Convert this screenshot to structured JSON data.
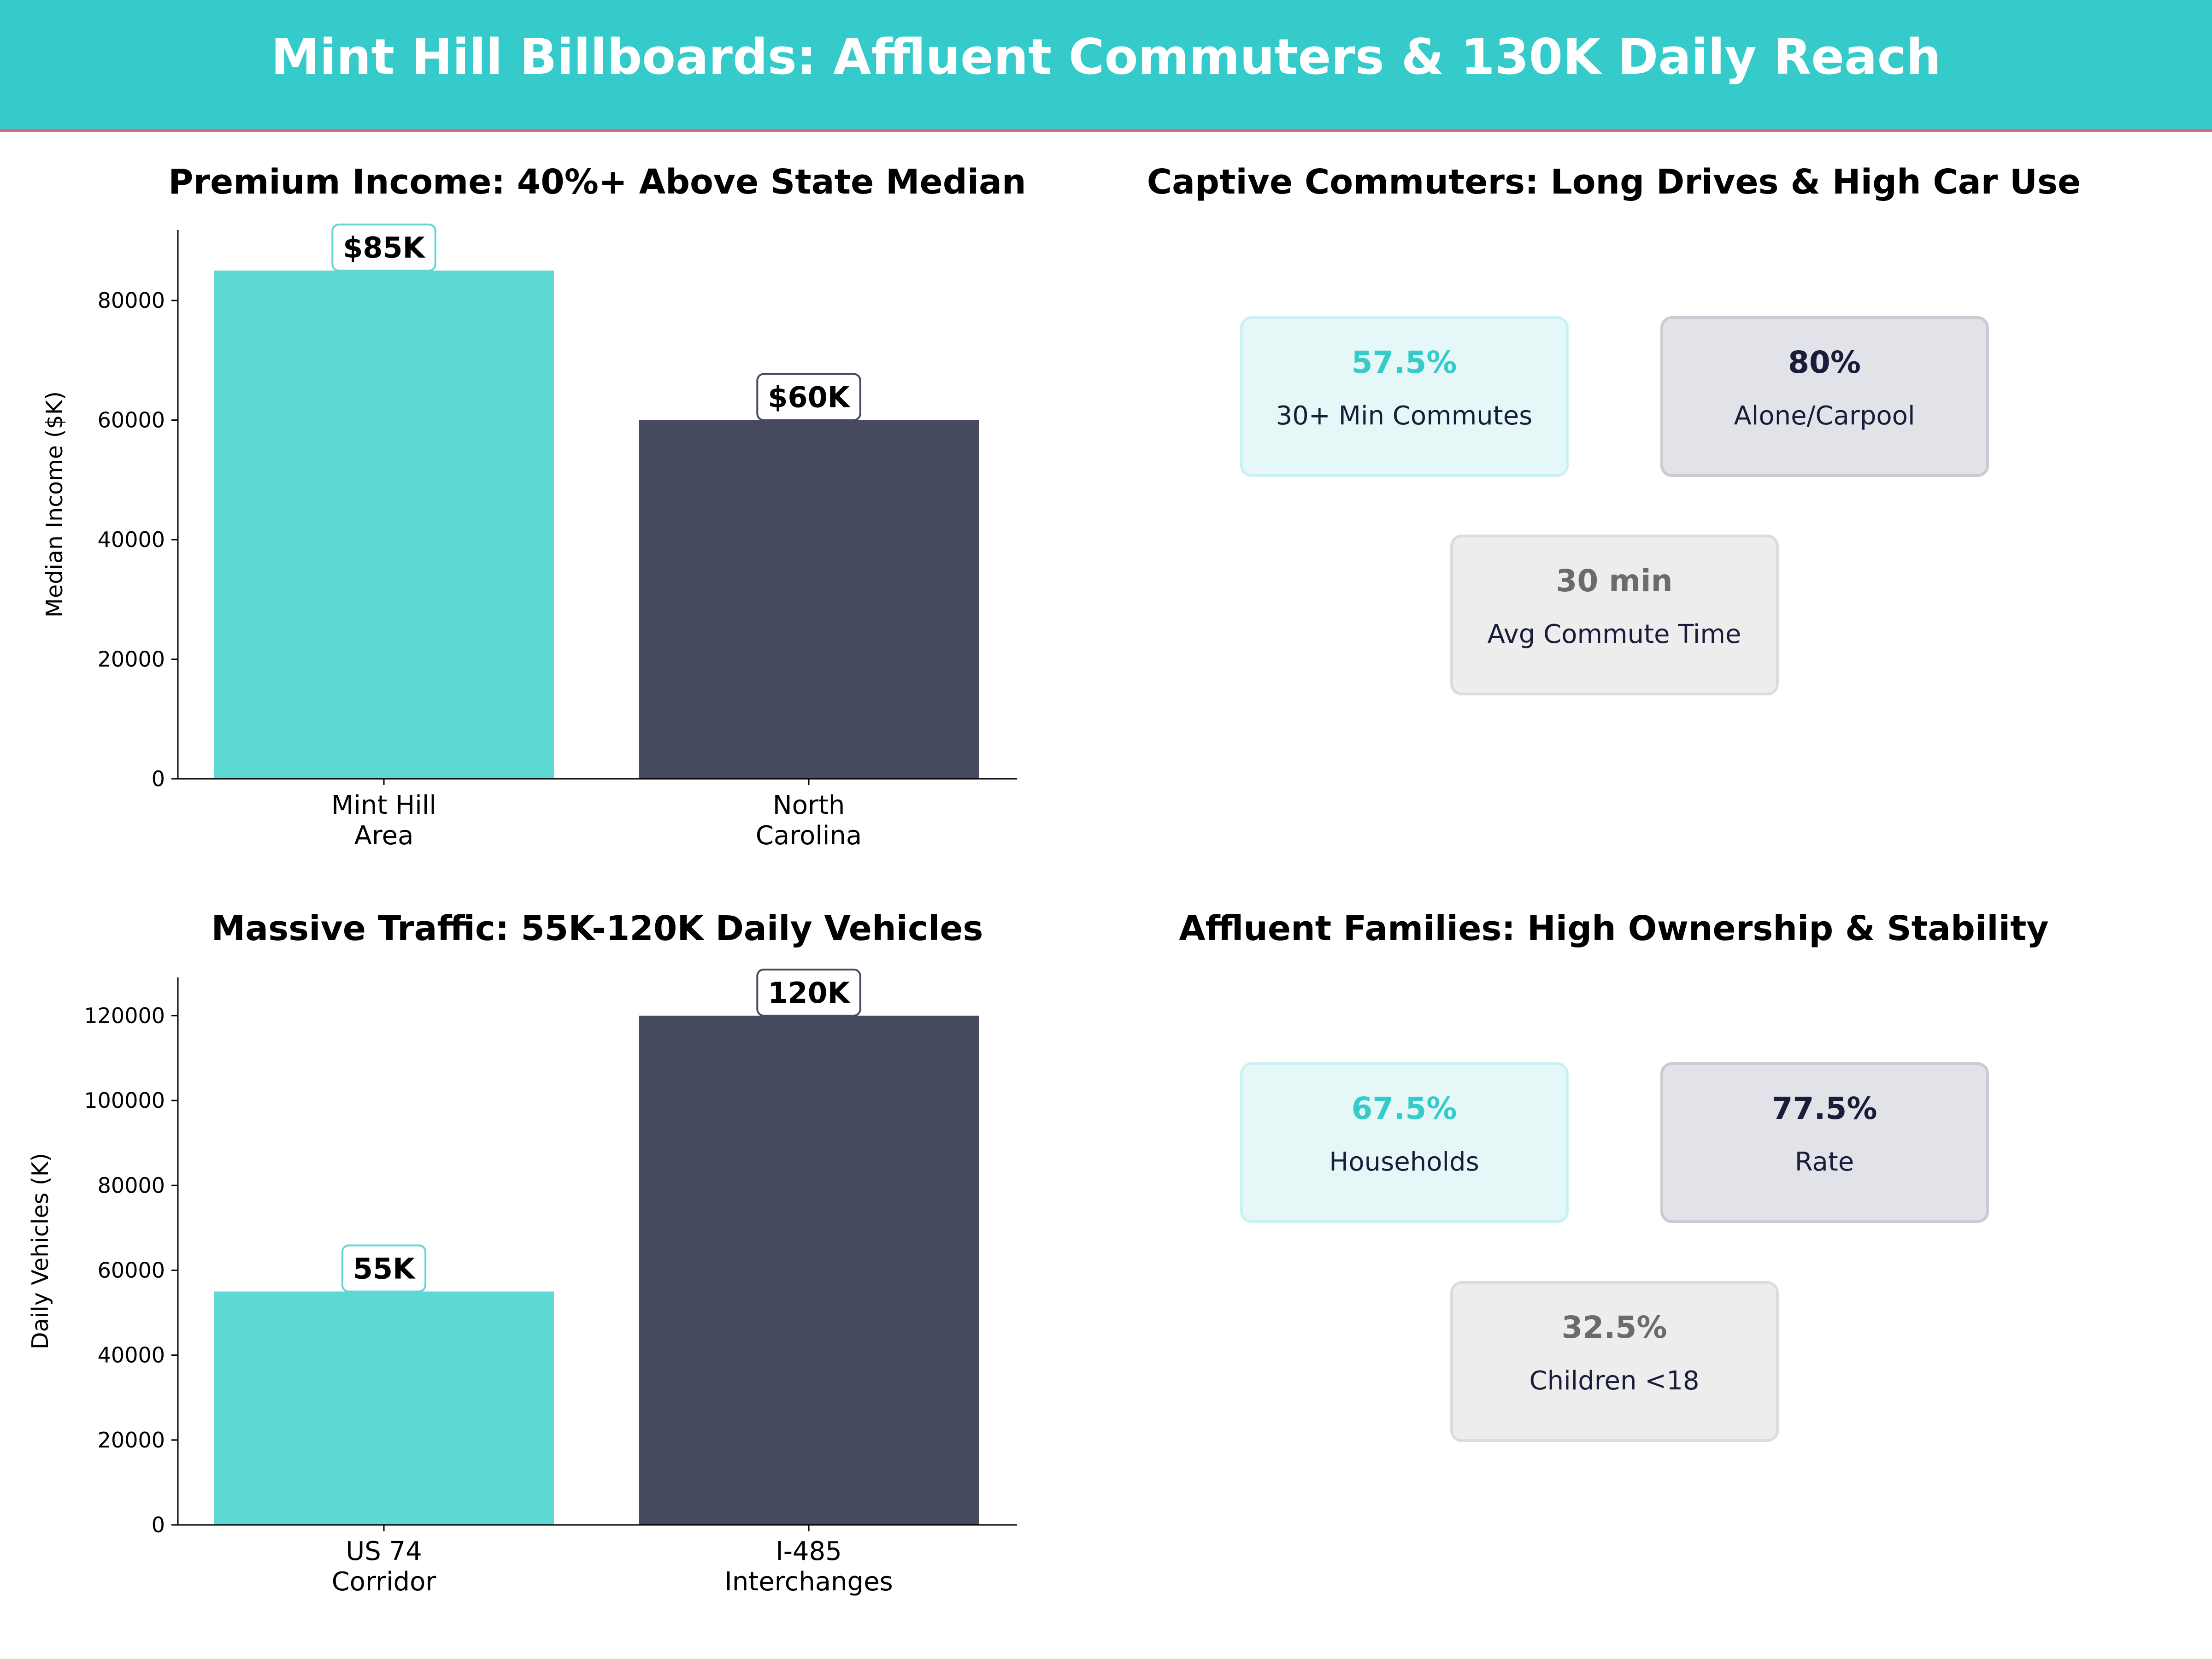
{
  "header": {
    "title": "Mint Hill Billboards: Affluent Commuters & 130K Daily Reach"
  },
  "colors": {
    "header_bg": "#36cbcb",
    "header_rule": "#e8636f",
    "teal": "#5ed8d4",
    "navy": "#464a5f",
    "text_navy": "#1a1d3a",
    "grey": "#6b6b6b"
  },
  "chart_data": [
    {
      "type": "bar",
      "title": "Premium Income: 40%+ Above State Median",
      "categories": [
        "Mint Hill\nArea",
        "North\nCarolina"
      ],
      "values": [
        85000,
        60000
      ],
      "data_labels": [
        "$85K",
        "$60K"
      ],
      "bar_colors": [
        "#5ed8d4",
        "#464a5f"
      ],
      "ylabel": "Median Income ($K)",
      "xlabel": "",
      "yticks": [
        "0",
        "20000",
        "40000",
        "60000",
        "80000"
      ],
      "ylim": [
        0,
        91800
      ],
      "grid": false
    },
    {
      "type": "bar",
      "title": "Massive Traffic: 55K-120K Daily Vehicles",
      "categories": [
        "US 74\nCorridor",
        "I-485\nInterchanges"
      ],
      "values": [
        55000,
        120000
      ],
      "data_labels": [
        "55K",
        "120K"
      ],
      "bar_colors": [
        "#5ed8d4",
        "#464a5f"
      ],
      "ylabel": "Daily Vehicles (K)",
      "xlabel": "",
      "yticks": [
        "0",
        "20000",
        "40000",
        "60000",
        "80000",
        "100000",
        "120000"
      ],
      "ylim": [
        0,
        129000
      ],
      "grid": false
    }
  ],
  "panels": [
    {
      "title": "Captive Commuters: Long Drives & High Car Use",
      "cards": [
        {
          "value": "57.5%",
          "label": "30+ Min Commutes",
          "style": "teal"
        },
        {
          "value": "80%",
          "label": "Alone/Carpool",
          "style": "navy"
        },
        {
          "value": "30 min",
          "label": "Avg Commute Time",
          "style": "grey"
        }
      ]
    },
    {
      "title": "Affluent Families: High Ownership & Stability",
      "cards": [
        {
          "value": "67.5%",
          "label": "Households",
          "style": "teal"
        },
        {
          "value": "77.5%",
          "label": "Rate",
          "style": "navy"
        },
        {
          "value": "32.5%",
          "label": "Children <18",
          "style": "grey"
        }
      ]
    }
  ]
}
